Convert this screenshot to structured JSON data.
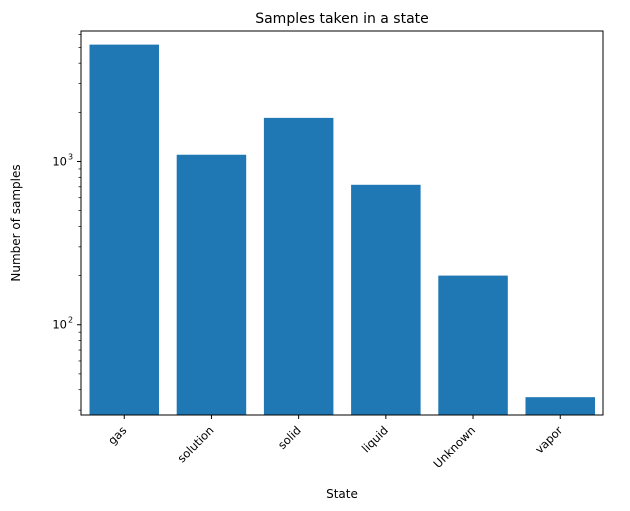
{
  "chart_data": {
    "type": "bar",
    "title": "Samples taken in a state",
    "xlabel": "State",
    "ylabel": "Number of samples",
    "y_scale": "log",
    "ylim": [
      28,
      6300
    ],
    "bar_color": "#1f77b4",
    "categories": [
      "gas",
      "solution",
      "solid",
      "liquid",
      "Unknown",
      "vapor"
    ],
    "values": [
      5200,
      1100,
      1850,
      720,
      200,
      36
    ],
    "y_major_ticks": [
      {
        "value": 100,
        "base": "10",
        "exponent": "2"
      },
      {
        "value": 1000,
        "base": "10",
        "exponent": "3"
      }
    ],
    "grid": false,
    "legend": "none"
  }
}
